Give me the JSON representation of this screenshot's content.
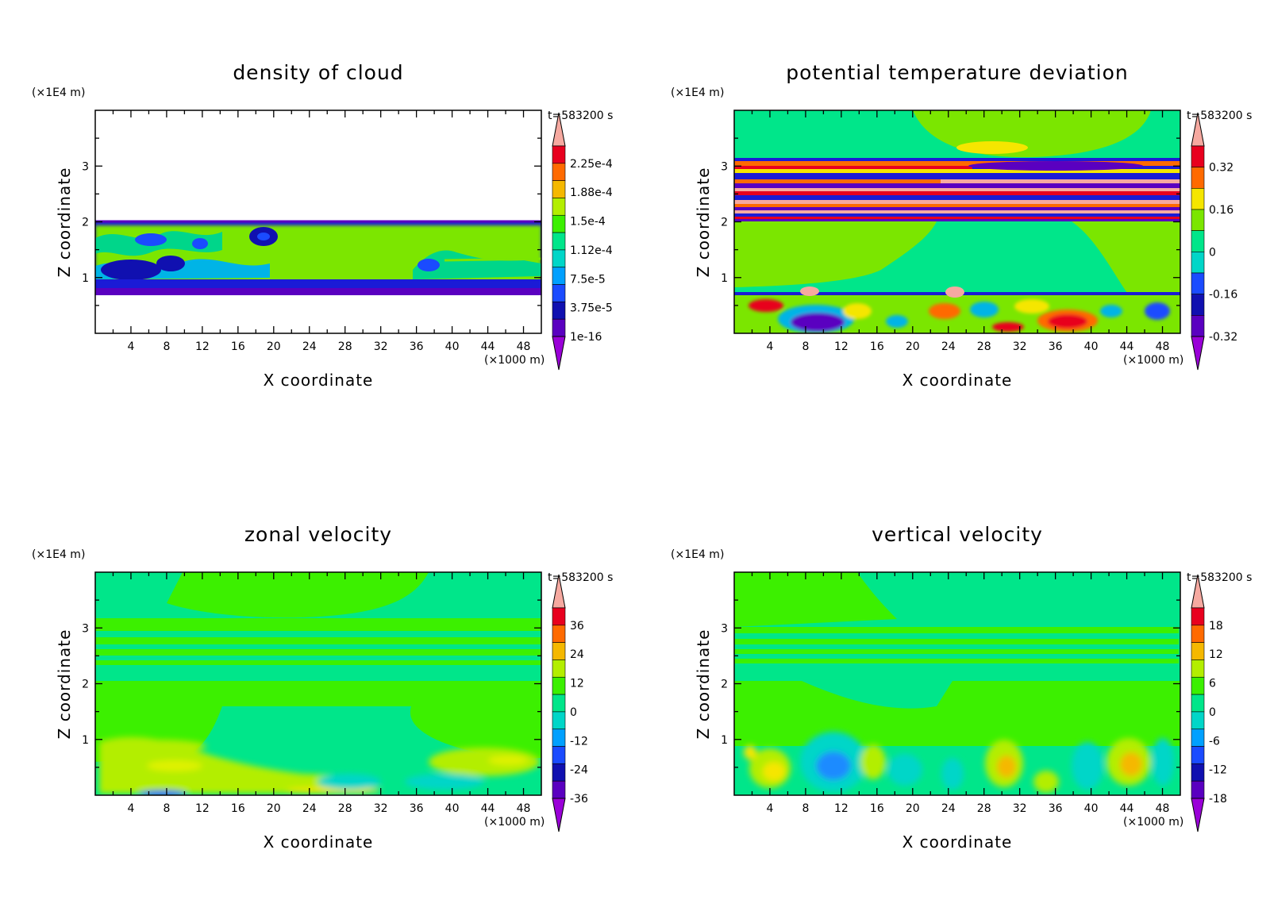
{
  "panels": [
    {
      "title": "density of cloud",
      "yunit": "(×1E4 m)",
      "time": "t=583200 s",
      "xlabel": "X coordinate",
      "ylabel": "Z coordinate",
      "xunit": "(×1000 m)",
      "colorbar": [
        "2.25e-4",
        "1.88e-4",
        "1.5e-4",
        "1.12e-4",
        "7.5e-5",
        "3.75e-5",
        "1e-16"
      ]
    },
    {
      "title": "potential temperature deviation",
      "yunit": "(×1E4 m)",
      "time": "t=583200 s",
      "xlabel": "X coordinate",
      "ylabel": "Z coordinate",
      "xunit": "(×1000 m)",
      "colorbar": [
        "0.32",
        "0.16",
        "0",
        "-0.16",
        "-0.32"
      ]
    },
    {
      "title": "zonal velocity",
      "yunit": "(×1E4 m)",
      "time": "t=583200 s",
      "xlabel": "X coordinate",
      "ylabel": "Z coordinate",
      "xunit": "(×1000 m)",
      "colorbar": [
        "36",
        "24",
        "12",
        "0",
        "-12",
        "-24",
        "-36"
      ]
    },
    {
      "title": "vertical velocity",
      "yunit": "(×1E4 m)",
      "time": "t=583200 s",
      "xlabel": "X coordinate",
      "ylabel": "Z coordinate",
      "xunit": "(×1000 m)",
      "colorbar": [
        "18",
        "12",
        "6",
        "0",
        "-6",
        "-12",
        "-18"
      ]
    }
  ],
  "chart_data": [
    {
      "type": "heatmap",
      "title": "density of cloud",
      "xlabel": "X coordinate",
      "ylabel": "Z coordinate",
      "x_ticks": [
        4,
        8,
        12,
        16,
        20,
        24,
        28,
        32,
        36,
        40,
        44,
        48
      ],
      "y_ticks": [
        1,
        2,
        3
      ],
      "xlim": [
        0,
        50
      ],
      "ylim": [
        0,
        4
      ],
      "colorbar_levels": [
        0.000225,
        0.000188,
        0.00015,
        0.000112,
        7.5e-05,
        3.75e-05,
        1e-16
      ],
      "regions": [
        {
          "label": "cloud layer (mostly ~1.5e-4)",
          "x": [
            0,
            50
          ],
          "z": [
            0.75,
            2.0
          ],
          "value": 0.00015
        },
        {
          "label": "cloud edges (low density)",
          "z_edges": [
            0.75,
            2.0
          ],
          "value": 1e-16
        }
      ]
    },
    {
      "type": "heatmap",
      "title": "potential temperature deviation",
      "xlabel": "X coordinate",
      "ylabel": "Z coordinate",
      "x_ticks": [
        4,
        8,
        12,
        16,
        20,
        24,
        28,
        32,
        36,
        40,
        44,
        48
      ],
      "y_ticks": [
        1,
        2,
        3
      ],
      "xlim": [
        0,
        50
      ],
      "ylim": [
        0,
        4
      ],
      "colorbar_levels": [
        0.32,
        0.16,
        0,
        -0.16,
        -0.32
      ],
      "regions": [
        {
          "label": "banded layer",
          "z": [
            2.0,
            3.1
          ],
          "value": "alternating +/-0.32"
        },
        {
          "label": "near-zero interior",
          "z": [
            0.75,
            2.0
          ],
          "value": 0
        },
        {
          "label": "turbulent boundary layer",
          "z": [
            0,
            0.75
          ],
          "value": "mixed"
        }
      ]
    },
    {
      "type": "heatmap",
      "title": "zonal velocity",
      "xlabel": "X coordinate",
      "ylabel": "Z coordinate",
      "x_ticks": [
        4,
        8,
        12,
        16,
        20,
        24,
        28,
        32,
        36,
        40,
        44,
        48
      ],
      "y_ticks": [
        1,
        2,
        3
      ],
      "xlim": [
        0,
        50
      ],
      "ylim": [
        0,
        4
      ],
      "colorbar_levels": [
        36,
        24,
        12,
        0,
        -12,
        -24,
        -36
      ],
      "regions": [
        {
          "label": "mostly near zero",
          "value": 0
        },
        {
          "label": "weak positive near surface",
          "z": [
            0,
            0.8
          ],
          "value": 8
        }
      ]
    },
    {
      "type": "heatmap",
      "title": "vertical velocity",
      "xlabel": "X coordinate",
      "ylabel": "Z coordinate",
      "x_ticks": [
        4,
        8,
        12,
        16,
        20,
        24,
        28,
        32,
        36,
        40,
        44,
        48
      ],
      "y_ticks": [
        1,
        2,
        3
      ],
      "xlim": [
        0,
        50
      ],
      "ylim": [
        0,
        4
      ],
      "colorbar_levels": [
        18,
        12,
        6,
        0,
        -6,
        -12,
        -18
      ],
      "regions": [
        {
          "label": "mostly near zero",
          "value": 0
        },
        {
          "label": "convective cells near surface",
          "z": [
            0,
            1.0
          ],
          "value": "+/-6 to +/-12"
        }
      ]
    }
  ]
}
